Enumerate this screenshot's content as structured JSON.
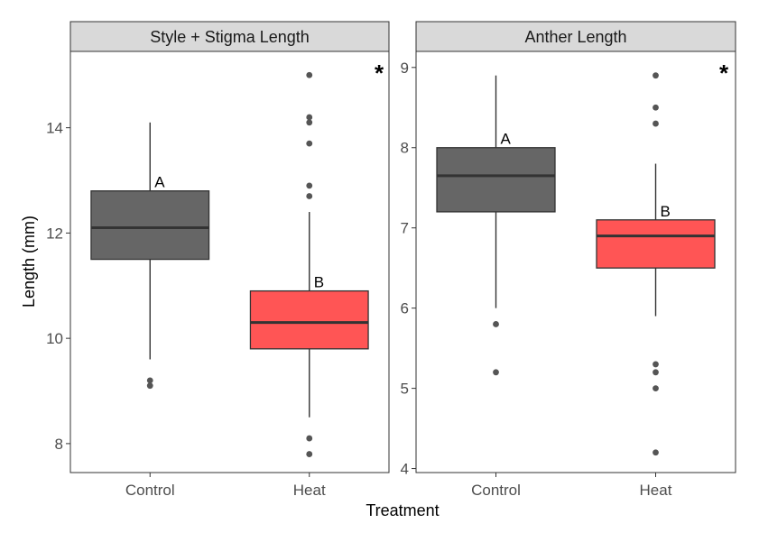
{
  "chart_data": {
    "type": "boxplot",
    "xlabel": "Treatment",
    "ylabel": "Length (mm)",
    "categories": [
      "Control",
      "Heat"
    ],
    "colors": {
      "Control": "#666666",
      "Heat": "#ff5555"
    },
    "grid": false,
    "legend": "none",
    "panels": [
      {
        "title": "Style + Stigma Length",
        "ylim": [
          7.45,
          15.45
        ],
        "yticks": [
          8,
          10,
          12,
          14
        ],
        "significance": "*",
        "boxes": [
          {
            "category": "Control",
            "min": 9.6,
            "q1": 11.5,
            "median": 12.1,
            "q3": 12.8,
            "max": 14.1,
            "outliers": [
              9.2,
              9.1
            ],
            "letter": "A"
          },
          {
            "category": "Heat",
            "min": 8.5,
            "q1": 9.8,
            "median": 10.3,
            "q3": 10.9,
            "max": 12.4,
            "outliers": [
              15.0,
              14.2,
              14.1,
              13.7,
              12.9,
              12.7,
              8.1,
              7.8
            ],
            "letter": "B"
          }
        ]
      },
      {
        "title": "Anther Length",
        "ylim": [
          3.95,
          9.2
        ],
        "yticks": [
          4,
          5,
          6,
          7,
          8,
          9
        ],
        "significance": "*",
        "boxes": [
          {
            "category": "Control",
            "min": 6.0,
            "q1": 7.2,
            "median": 7.65,
            "q3": 8.0,
            "max": 8.9,
            "outliers": [
              5.8,
              5.2
            ],
            "letter": "A"
          },
          {
            "category": "Heat",
            "min": 5.9,
            "q1": 6.5,
            "median": 6.9,
            "q3": 7.1,
            "max": 7.8,
            "outliers": [
              8.9,
              8.5,
              8.3,
              5.3,
              5.2,
              5.0,
              4.2
            ],
            "letter": "B"
          }
        ]
      }
    ]
  }
}
